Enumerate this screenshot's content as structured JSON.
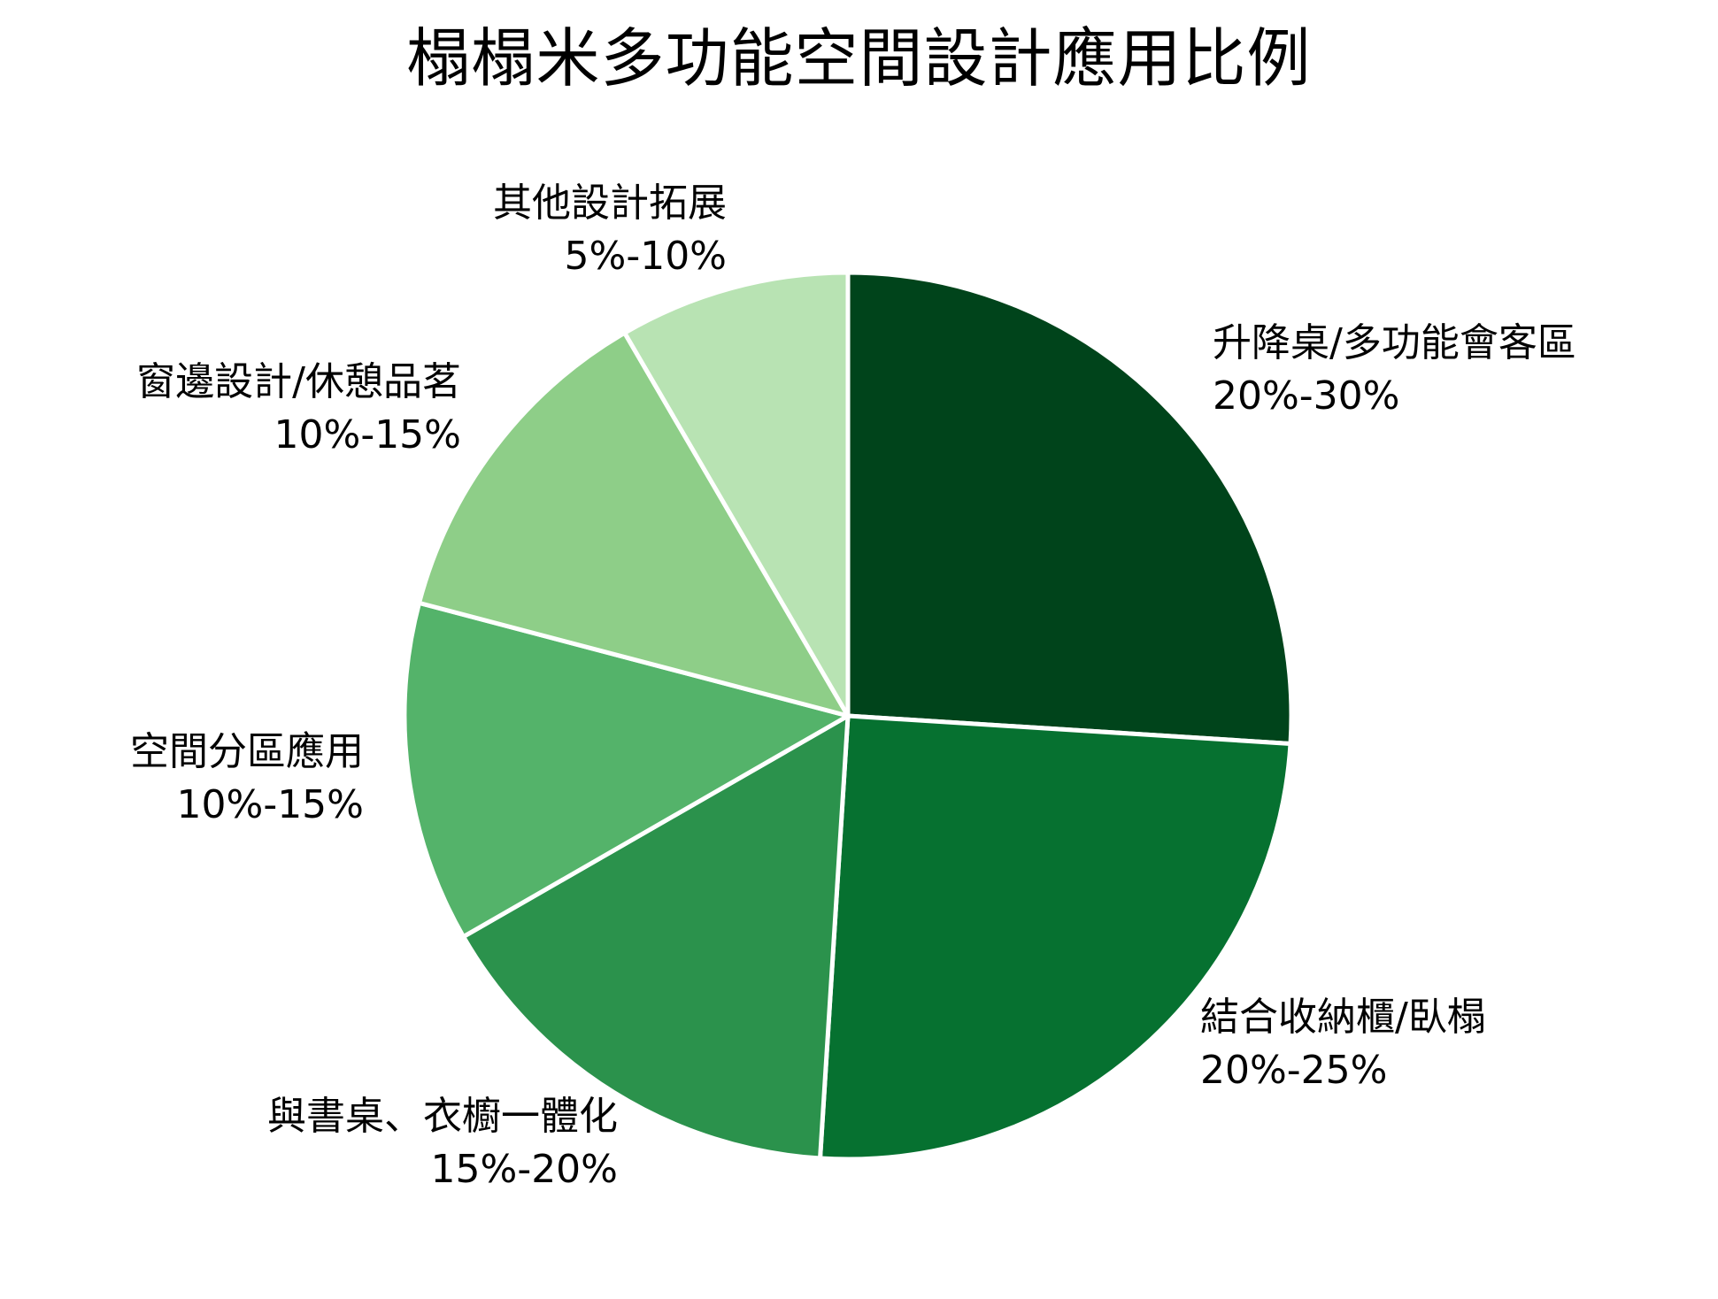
{
  "chart_data": {
    "type": "pie",
    "title": "榻榻米多功能空間設計應用比例",
    "start_angle_deg": 90,
    "direction": "clockwise",
    "categories": [
      "升降桌/多功能會客區",
      "結合收納櫃/臥榻",
      "與書桌、衣櫥一體化",
      "空間分區應用",
      "窗邊設計/休憩品茗",
      "其他設計拓展"
    ],
    "ranges": [
      "20%-30%",
      "20%-25%",
      "15%-20%",
      "10%-15%",
      "10%-15%",
      "5%-10%"
    ],
    "values": [
      26,
      25,
      15.7,
      12.4,
      12.5,
      8.4
    ],
    "colors": [
      "#00441b",
      "#067130",
      "#2b924c",
      "#54b36a",
      "#8ece88",
      "#b8e3b3"
    ],
    "legend": "none",
    "edge_color": "#ffffff"
  },
  "title": "榻榻米多功能空間設計應用比例",
  "labels": [
    {
      "name": "升降桌/多功能會客區",
      "range": "20%-30%"
    },
    {
      "name": "結合收納櫃/臥榻",
      "range": "20%-25%"
    },
    {
      "name": "與書桌、衣櫥一體化",
      "range": "15%-20%"
    },
    {
      "name": "空間分區應用",
      "range": "10%-15%"
    },
    {
      "name": "窗邊設計/休憩品茗",
      "range": "10%-15%"
    },
    {
      "name": "其他設計拓展",
      "range": "5%-10%"
    }
  ]
}
